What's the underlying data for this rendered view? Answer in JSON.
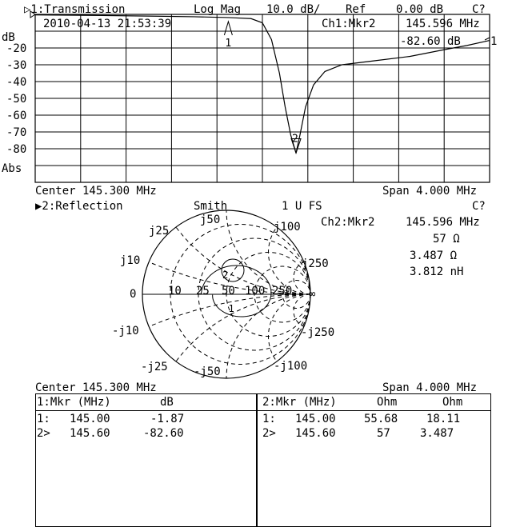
{
  "ch1": {
    "title": "▷1:Transmission",
    "format": "Log Mag",
    "scale": "10.0 dB/",
    "ref": "Ref",
    "ref_value": "0.00 dB",
    "cal": "C?",
    "timestamp": "2010-04-13 21:53:39",
    "mkr_label": "Ch1:Mkr2",
    "mkr_freq": "145.596 MHz",
    "mkr_value": "-82.60 dB",
    "unit": "dB",
    "abs": "Abs",
    "ticks": [
      "-20",
      "-30",
      "-40",
      "-50",
      "-60",
      "-70",
      "-80"
    ],
    "center": "Center 145.300 MHz",
    "span": "Span 4.000 MHz",
    "ref_marker": "1"
  },
  "ch2": {
    "title": "▶2:Reflection",
    "format": "Smith",
    "scale": "1 U FS",
    "cal": "C?",
    "mkr_label": "Ch2:Mkr2",
    "mkr_freq": "145.596 MHz",
    "mkr_r": "57 Ω",
    "mkr_x": "3.487 Ω",
    "mkr_l": "3.812 nH",
    "labels": {
      "zero": "0",
      "inf": "∞",
      "r10": "10",
      "r25": "25",
      "r50": "50",
      "r100": "100",
      "r250": "250",
      "jp10": "j10",
      "jp25": "j25",
      "jp50": "j50",
      "jp100": "j100",
      "jp250": "j250",
      "jn10": "-j10",
      "jn25": "-j25",
      "jn50": "-j50",
      "jn100": "-j100",
      "jn250": "-j250"
    },
    "center": "Center 145.300 MHz",
    "span": "Span 4.000 MHz"
  },
  "table1": {
    "headers": [
      "1:Mkr (MHz)",
      "dB"
    ],
    "rows": [
      [
        "1:",
        "145.00",
        "-1.87"
      ],
      [
        "2>",
        "145.60",
        "-82.60"
      ]
    ]
  },
  "table2": {
    "headers": [
      "2:Mkr (MHz)",
      "Ohm",
      "Ohm"
    ],
    "rows": [
      [
        "1:",
        "145.00",
        "55.68",
        "18.11"
      ],
      [
        "2>",
        "145.60",
        "57",
        "3.487"
      ]
    ]
  },
  "chart_data": [
    {
      "type": "line",
      "title": "1:Transmission",
      "ylabel": "dB",
      "xlim": [
        143.3,
        147.3
      ],
      "ylim": [
        -100,
        0
      ],
      "grid": true,
      "x": [
        143.3,
        143.8,
        144.3,
        144.7,
        145.0,
        145.2,
        145.3,
        145.38,
        145.45,
        145.5,
        145.55,
        145.596,
        145.63,
        145.68,
        145.75,
        145.85,
        146.0,
        146.3,
        146.6,
        146.9,
        147.1,
        147.3
      ],
      "y": [
        -0.3,
        -0.6,
        -1.0,
        -1.4,
        -1.87,
        -2.5,
        -5,
        -15,
        -35,
        -55,
        -72,
        -82.6,
        -72,
        -55,
        -42,
        -34,
        -30,
        -27.5,
        -25,
        -21,
        -18.5,
        -15.5
      ],
      "markers": [
        {
          "id": "1",
          "x": 145.0,
          "y": -1.87
        },
        {
          "id": "2",
          "x": 145.596,
          "y": -82.6
        }
      ]
    },
    {
      "type": "smith",
      "title": "2:Reflection",
      "scale": "1 U FS",
      "markers": [
        {
          "id": "1",
          "r_ohm": 55.68,
          "x_ohm": 18.11
        },
        {
          "id": "2",
          "r_ohm": 57,
          "x_ohm": 3.487
        }
      ]
    }
  ]
}
